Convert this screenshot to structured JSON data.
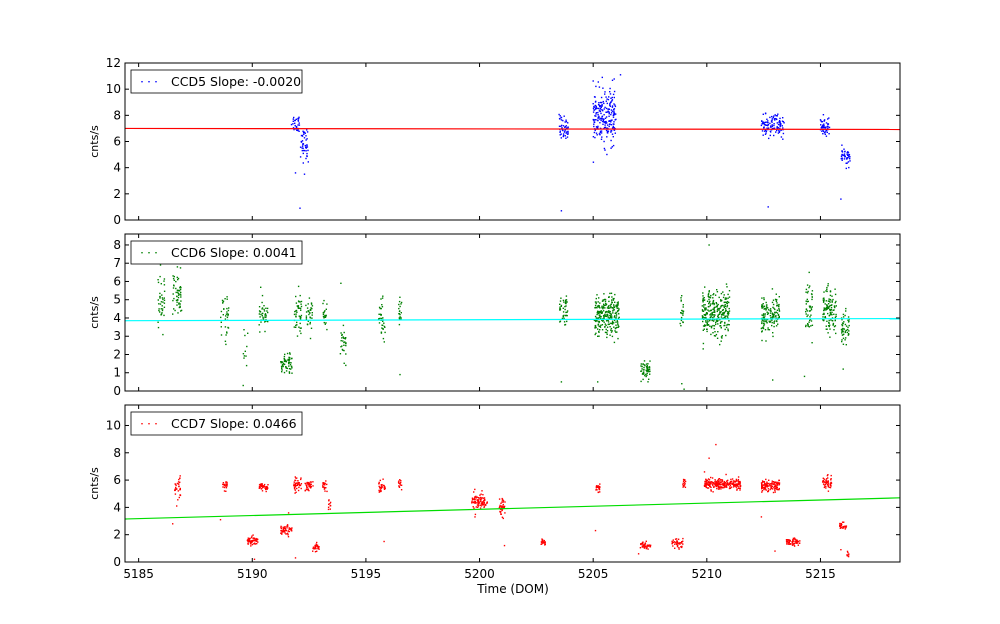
{
  "xlabel": "Time (DOM)",
  "colors": {
    "ccd5": "#0000ff",
    "ccd6": "#008000",
    "ccd7": "#ff0000"
  },
  "chart_data": [
    {
      "type": "scatter",
      "xlim": [
        5184.4,
        5218.5
      ],
      "ylim": [
        0,
        12
      ],
      "yticks": [
        0,
        2,
        4,
        6,
        8,
        10,
        12
      ],
      "xticks": [
        5185,
        5190,
        5195,
        5200,
        5205,
        5210,
        5215
      ],
      "ylabel": "cnts/s",
      "legend": "CCD5 Slope: -0.0020",
      "legend_position": "top-left",
      "point_color": "#0000ff",
      "fit_color": "#ff0000",
      "fit": {
        "x": [
          5184.4,
          5218.5
        ],
        "y": [
          7.0,
          6.92
        ]
      },
      "clusters": [
        {
          "x": 5191.9,
          "w": 0.35,
          "y": 7.4,
          "s": 0.35,
          "n": 30
        },
        {
          "x": 5192.3,
          "w": 0.35,
          "y": 5.8,
          "s": 0.6,
          "n": 45
        },
        {
          "x": 5203.7,
          "w": 0.4,
          "y": 7.0,
          "s": 0.5,
          "n": 50
        },
        {
          "x": 5205.5,
          "w": 1.0,
          "y": 7.9,
          "s": 1.0,
          "n": 230
        },
        {
          "x": 5212.9,
          "w": 1.0,
          "y": 7.2,
          "s": 0.4,
          "n": 110
        },
        {
          "x": 5215.2,
          "w": 0.4,
          "y": 7.1,
          "s": 0.45,
          "n": 50
        },
        {
          "x": 5216.1,
          "w": 0.4,
          "y": 4.8,
          "s": 0.3,
          "n": 45
        }
      ],
      "outliers": [
        {
          "x": 5192.1,
          "y": 0.9
        },
        {
          "x": 5203.6,
          "y": 0.7
        },
        {
          "x": 5212.7,
          "y": 1.0
        },
        {
          "x": 5215.9,
          "y": 1.6
        },
        {
          "x": 5205.4,
          "y": 10.9
        },
        {
          "x": 5206.2,
          "y": 11.1
        },
        {
          "x": 5191.9,
          "y": 3.6
        },
        {
          "x": 5192.3,
          "y": 3.5
        }
      ]
    },
    {
      "type": "scatter",
      "xlim": [
        5184.4,
        5218.5
      ],
      "ylim": [
        0,
        8.6
      ],
      "yticks": [
        0,
        1,
        2,
        3,
        4,
        5,
        6,
        7,
        8
      ],
      "xticks": [
        5185,
        5190,
        5195,
        5200,
        5205,
        5210,
        5215
      ],
      "ylabel": "cnts/s",
      "legend": "CCD6 Slope: 0.0041",
      "legend_position": "top-left",
      "point_color": "#008000",
      "fit_color": "#00ffff",
      "fit": {
        "x": [
          5184.4,
          5218.5
        ],
        "y": [
          3.85,
          3.97
        ]
      },
      "clusters": [
        {
          "x": 5186.0,
          "w": 0.3,
          "y": 5.0,
          "s": 0.8,
          "n": 40
        },
        {
          "x": 5186.7,
          "w": 0.4,
          "y": 5.3,
          "s": 0.6,
          "n": 55
        },
        {
          "x": 5188.8,
          "w": 0.4,
          "y": 4.0,
          "s": 0.7,
          "n": 35
        },
        {
          "x": 5189.7,
          "w": 0.2,
          "y": 2.6,
          "s": 0.5,
          "n": 10
        },
        {
          "x": 5190.5,
          "w": 0.4,
          "y": 4.1,
          "s": 0.5,
          "n": 40
        },
        {
          "x": 5191.5,
          "w": 0.5,
          "y": 1.5,
          "s": 0.25,
          "n": 60
        },
        {
          "x": 5192.0,
          "w": 0.35,
          "y": 4.2,
          "s": 0.6,
          "n": 45
        },
        {
          "x": 5192.5,
          "w": 0.3,
          "y": 4.3,
          "s": 0.5,
          "n": 35
        },
        {
          "x": 5193.2,
          "w": 0.2,
          "y": 4.2,
          "s": 0.4,
          "n": 20
        },
        {
          "x": 5194.0,
          "w": 0.25,
          "y": 2.6,
          "s": 0.6,
          "n": 30
        },
        {
          "x": 5195.7,
          "w": 0.3,
          "y": 4.0,
          "s": 0.5,
          "n": 35
        },
        {
          "x": 5196.5,
          "w": 0.15,
          "y": 4.4,
          "s": 0.4,
          "n": 20
        },
        {
          "x": 5203.7,
          "w": 0.35,
          "y": 4.3,
          "s": 0.5,
          "n": 45
        },
        {
          "x": 5205.6,
          "w": 1.1,
          "y": 4.1,
          "s": 0.55,
          "n": 260
        },
        {
          "x": 5207.3,
          "w": 0.4,
          "y": 1.1,
          "s": 0.25,
          "n": 55
        },
        {
          "x": 5208.9,
          "w": 0.15,
          "y": 4.1,
          "s": 0.5,
          "n": 20
        },
        {
          "x": 5210.4,
          "w": 1.2,
          "y": 4.3,
          "s": 0.6,
          "n": 280
        },
        {
          "x": 5212.8,
          "w": 0.8,
          "y": 4.1,
          "s": 0.55,
          "n": 140
        },
        {
          "x": 5214.5,
          "w": 0.3,
          "y": 4.5,
          "s": 0.8,
          "n": 50
        },
        {
          "x": 5215.4,
          "w": 0.6,
          "y": 4.4,
          "s": 0.7,
          "n": 120
        },
        {
          "x": 5216.1,
          "w": 0.35,
          "y": 3.3,
          "s": 0.5,
          "n": 50
        }
      ],
      "outliers": [
        {
          "x": 5189.6,
          "y": 0.3
        },
        {
          "x": 5203.6,
          "y": 0.5
        },
        {
          "x": 5205.2,
          "y": 0.5
        },
        {
          "x": 5208.9,
          "y": 0.4
        },
        {
          "x": 5209.0,
          "y": 0.1
        },
        {
          "x": 5210.1,
          "y": 8.0
        },
        {
          "x": 5212.9,
          "y": 0.6
        },
        {
          "x": 5214.3,
          "y": 0.8
        },
        {
          "x": 5216.0,
          "y": 1.2
        },
        {
          "x": 5186.6,
          "y": 7.0
        },
        {
          "x": 5193.9,
          "y": 5.9
        },
        {
          "x": 5196.5,
          "y": 0.9
        }
      ]
    },
    {
      "type": "scatter",
      "xlim": [
        5184.4,
        5218.5
      ],
      "ylim": [
        0,
        11.5
      ],
      "yticks": [
        0,
        2,
        4,
        6,
        8,
        10
      ],
      "xticks": [
        5185,
        5190,
        5195,
        5200,
        5205,
        5210,
        5215
      ],
      "xtick_labels": [
        "5185",
        "5190",
        "5195",
        "5200",
        "5205",
        "5210",
        "5215"
      ],
      "ylabel": "cnts/s",
      "legend": "CCD7 Slope: 0.0466",
      "legend_position": "top-left",
      "point_color": "#ff0000",
      "fit_color": "#00dd00",
      "fit": {
        "x": [
          5184.4,
          5218.5
        ],
        "y": [
          3.15,
          4.7
        ]
      },
      "clusters": [
        {
          "x": 5186.7,
          "w": 0.3,
          "y": 5.3,
          "s": 0.4,
          "n": 35
        },
        {
          "x": 5188.8,
          "w": 0.2,
          "y": 5.6,
          "s": 0.2,
          "n": 20
        },
        {
          "x": 5190.0,
          "w": 0.5,
          "y": 1.5,
          "s": 0.15,
          "n": 55
        },
        {
          "x": 5190.5,
          "w": 0.4,
          "y": 5.5,
          "s": 0.2,
          "n": 45
        },
        {
          "x": 5191.5,
          "w": 0.5,
          "y": 2.35,
          "s": 0.15,
          "n": 55
        },
        {
          "x": 5192.0,
          "w": 0.35,
          "y": 5.7,
          "s": 0.25,
          "n": 40
        },
        {
          "x": 5192.5,
          "w": 0.35,
          "y": 5.6,
          "s": 0.2,
          "n": 40
        },
        {
          "x": 5192.8,
          "w": 0.3,
          "y": 1.05,
          "s": 0.15,
          "n": 30
        },
        {
          "x": 5193.2,
          "w": 0.2,
          "y": 5.7,
          "s": 0.2,
          "n": 20
        },
        {
          "x": 5193.4,
          "w": 0.1,
          "y": 4.3,
          "s": 0.25,
          "n": 10
        },
        {
          "x": 5195.7,
          "w": 0.3,
          "y": 5.5,
          "s": 0.2,
          "n": 30
        },
        {
          "x": 5196.5,
          "w": 0.15,
          "y": 5.7,
          "s": 0.25,
          "n": 15
        },
        {
          "x": 5200.0,
          "w": 0.7,
          "y": 4.5,
          "s": 0.3,
          "n": 90
        },
        {
          "x": 5201.0,
          "w": 0.25,
          "y": 4.0,
          "s": 0.35,
          "n": 40
        },
        {
          "x": 5202.8,
          "w": 0.2,
          "y": 1.45,
          "s": 0.15,
          "n": 20
        },
        {
          "x": 5205.2,
          "w": 0.2,
          "y": 5.4,
          "s": 0.2,
          "n": 25
        },
        {
          "x": 5207.3,
          "w": 0.45,
          "y": 1.2,
          "s": 0.12,
          "n": 40
        },
        {
          "x": 5208.7,
          "w": 0.5,
          "y": 1.4,
          "s": 0.15,
          "n": 40
        },
        {
          "x": 5209.0,
          "w": 0.15,
          "y": 5.7,
          "s": 0.25,
          "n": 15
        },
        {
          "x": 5210.7,
          "w": 1.6,
          "y": 5.7,
          "s": 0.2,
          "n": 240
        },
        {
          "x": 5212.8,
          "w": 0.8,
          "y": 5.6,
          "s": 0.22,
          "n": 120
        },
        {
          "x": 5213.8,
          "w": 0.6,
          "y": 1.45,
          "s": 0.12,
          "n": 60
        },
        {
          "x": 5215.3,
          "w": 0.4,
          "y": 5.8,
          "s": 0.25,
          "n": 50
        },
        {
          "x": 5216.0,
          "w": 0.3,
          "y": 2.65,
          "s": 0.12,
          "n": 30
        },
        {
          "x": 5216.2,
          "w": 0.1,
          "y": 0.5,
          "s": 0.12,
          "n": 8
        }
      ],
      "outliers": [
        {
          "x": 5210.4,
          "y": 8.6
        },
        {
          "x": 5210.1,
          "y": 7.6
        },
        {
          "x": 5209.9,
          "y": 6.6
        },
        {
          "x": 5191.9,
          "y": 0.3
        },
        {
          "x": 5190.1,
          "y": 0.2
        },
        {
          "x": 5195.8,
          "y": 1.5
        },
        {
          "x": 5201.1,
          "y": 1.2
        },
        {
          "x": 5205.1,
          "y": 2.3
        },
        {
          "x": 5207.0,
          "y": 0.6
        },
        {
          "x": 5212.4,
          "y": 3.3
        },
        {
          "x": 5213.0,
          "y": 0.8
        },
        {
          "x": 5215.9,
          "y": 0.9
        },
        {
          "x": 5188.6,
          "y": 3.1
        },
        {
          "x": 5186.5,
          "y": 2.8
        },
        {
          "x": 5199.8,
          "y": 3.3
        },
        {
          "x": 5191.6,
          "y": 3.6
        }
      ]
    }
  ]
}
